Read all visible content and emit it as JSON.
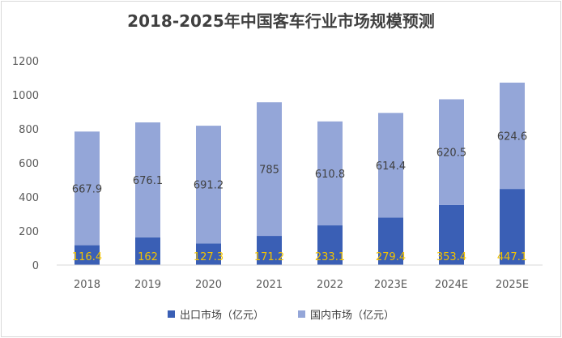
{
  "chart_data": {
    "type": "bar",
    "stacked": true,
    "title": "2018-2025年中国客车行业市场规模预测",
    "categories": [
      "2018",
      "2019",
      "2020",
      "2021",
      "2022",
      "2023E",
      "2024E",
      "2025E"
    ],
    "series": [
      {
        "name": "出口市场（亿元）",
        "values": [
          116.4,
          162,
          127.3,
          171.2,
          233.1,
          279.4,
          353.4,
          447.1
        ],
        "color": "#3a5fb5",
        "label_color": "#f2c200"
      },
      {
        "name": "国内市场（亿元）",
        "values": [
          667.9,
          676.1,
          691.2,
          785,
          610.8,
          614.4,
          620.5,
          624.6
        ],
        "color": "#94a6d8",
        "label_color": "#404040"
      }
    ],
    "ylim": [
      0,
      1200
    ],
    "yticks": [
      0,
      200,
      400,
      600,
      800,
      1000,
      1200
    ],
    "grid": false,
    "legend_position": "bottom"
  }
}
